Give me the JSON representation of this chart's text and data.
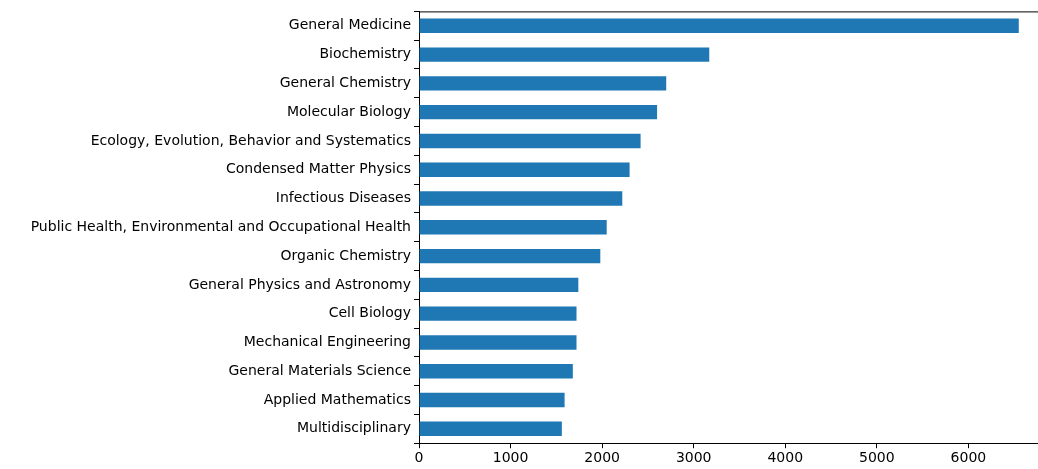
{
  "chart_data": {
    "type": "bar",
    "orientation": "horizontal",
    "categories": [
      "General Medicine",
      "Biochemistry",
      "General Chemistry",
      "Molecular Biology",
      "Ecology, Evolution, Behavior and Systematics",
      "Condensed Matter Physics",
      "Infectious Diseases",
      "Public Health, Environmental and Occupational Health",
      "Organic Chemistry",
      "General Physics and Astronomy",
      "Cell Biology",
      "Mechanical Engineering",
      "General Materials Science",
      "Applied Mathematics",
      "Multidisciplinary"
    ],
    "values": [
      6550,
      3170,
      2700,
      2600,
      2420,
      2300,
      2220,
      2050,
      1980,
      1740,
      1720,
      1720,
      1680,
      1590,
      1560
    ],
    "color": "#1f77b4",
    "xlim": [
      0,
      6760
    ],
    "xticks": [
      0,
      1000,
      2000,
      3000,
      4000,
      5000,
      6000
    ],
    "grid": false,
    "legend": false
  }
}
